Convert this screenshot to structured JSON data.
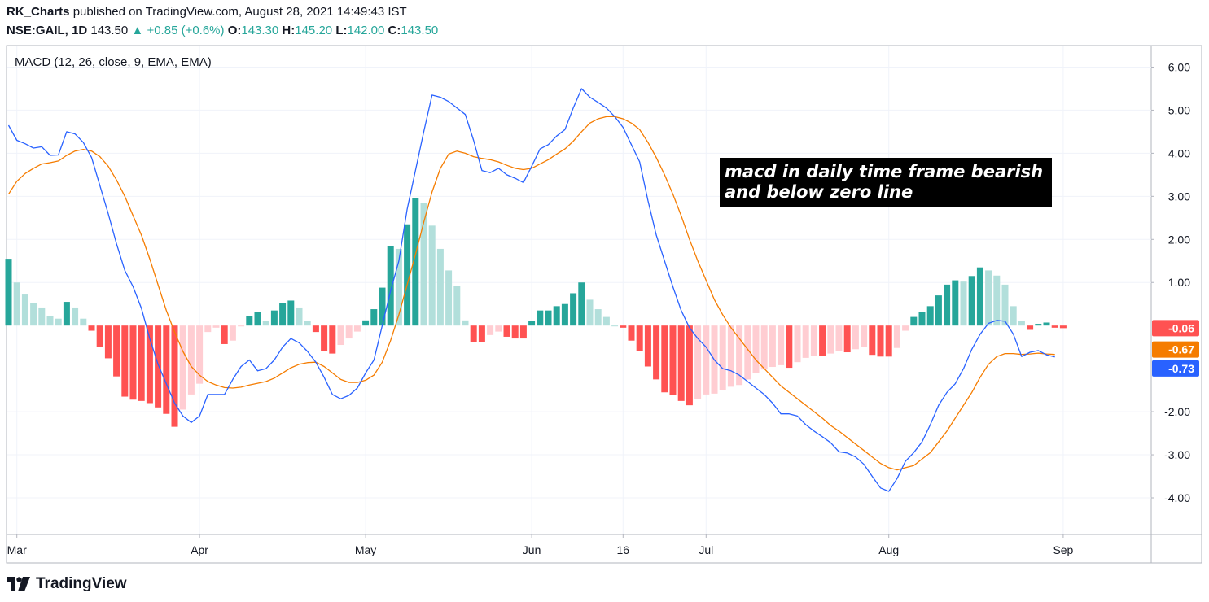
{
  "header": {
    "author": "RK_Charts",
    "published": "published on TradingView.com, August 28, 2021 14:49:43 IST",
    "symbol": "NSE:GAIL, 1D",
    "price": "143.50",
    "change": "+0.85 (+0.6%)",
    "o_label": "O:",
    "o_value": "143.30",
    "h_label": "H:",
    "h_value": "145.20",
    "l_label": "L:",
    "l_value": "142.00",
    "c_label": "C:",
    "c_value": "143.50"
  },
  "annotation": "macd in daily time frame bearish and below zero line",
  "footer": {
    "brand": "TradingView"
  },
  "colors": {
    "macd": "#2962ff",
    "signal": "#f57c00",
    "hist_pos_rising": "#26a69a",
    "hist_pos_falling": "#b2dfdb",
    "hist_neg_falling": "#ff5252",
    "hist_neg_rising": "#ffcdd2",
    "grid": "#f0f3fa",
    "border": "#b2b5be",
    "axis_text": "#131722",
    "label_hist": "#ff5252",
    "label_signal": "#f57c00",
    "label_macd": "#2962ff"
  },
  "chart_data": {
    "type": "line",
    "title": "MACD (12, 26, close, 9, EMA, EMA)",
    "x_ticks": [
      "Mar",
      "Apr",
      "May",
      "Jun",
      "16",
      "Jul",
      "Aug",
      "Sep"
    ],
    "x_tick_index": [
      1,
      23,
      43,
      63,
      74,
      84,
      106,
      127
    ],
    "y_ticks": [
      "6.00",
      "5.00",
      "4.00",
      "3.00",
      "2.00",
      "1.00",
      "-2.00",
      "-3.00",
      "-4.00"
    ],
    "y_tick_values": [
      6,
      5,
      4,
      3,
      2,
      1,
      -2,
      -3,
      -4
    ],
    "ylim": [
      -4.85,
      6.5
    ],
    "last_values": {
      "histogram": "-0.06",
      "signal": "-0.67",
      "macd": "-0.73"
    },
    "series": [
      {
        "name": "MACD",
        "values": [
          4.65,
          4.3,
          4.22,
          4.12,
          4.15,
          3.95,
          3.96,
          4.5,
          4.45,
          4.25,
          3.9,
          3.25,
          2.6,
          1.9,
          1.28,
          0.9,
          0.4,
          -0.3,
          -0.9,
          -1.35,
          -1.8,
          -2.1,
          -2.25,
          -2.1,
          -1.6,
          -1.6,
          -1.6,
          -1.25,
          -0.95,
          -0.8,
          -1.05,
          -1.0,
          -0.8,
          -0.5,
          -0.3,
          -0.4,
          -0.6,
          -0.85,
          -1.2,
          -1.6,
          -1.7,
          -1.62,
          -1.45,
          -1.1,
          -0.8,
          0.0,
          0.8,
          1.5,
          2.7,
          3.6,
          4.5,
          5.35,
          5.3,
          5.2,
          5.05,
          4.9,
          4.3,
          3.6,
          3.55,
          3.65,
          3.5,
          3.42,
          3.32,
          3.7,
          4.1,
          4.2,
          4.4,
          4.55,
          5.05,
          5.5,
          5.3,
          5.18,
          5.05,
          4.85,
          4.6,
          4.2,
          3.8,
          2.9,
          2.1,
          1.5,
          0.9,
          0.35,
          -0.05,
          -0.3,
          -0.5,
          -0.8,
          -1.0,
          -1.05,
          -1.15,
          -1.3,
          -1.45,
          -1.6,
          -1.8,
          -2.05,
          -2.05,
          -2.1,
          -2.3,
          -2.45,
          -2.58,
          -2.72,
          -2.93,
          -2.96,
          -3.05,
          -3.22,
          -3.5,
          -3.77,
          -3.85,
          -3.55,
          -3.15,
          -2.95,
          -2.7,
          -2.3,
          -1.85,
          -1.55,
          -1.35,
          -1.0,
          -0.55,
          -0.2,
          0.05,
          0.12,
          0.1,
          -0.2,
          -0.72,
          -0.62,
          -0.58,
          -0.68,
          -0.73
        ]
      },
      {
        "name": "Signal",
        "values": [
          3.05,
          3.35,
          3.53,
          3.65,
          3.75,
          3.78,
          3.82,
          3.95,
          4.05,
          4.09,
          4.05,
          3.92,
          3.7,
          3.38,
          3.0,
          2.55,
          2.1,
          1.55,
          0.95,
          0.35,
          -0.15,
          -0.6,
          -0.95,
          -1.15,
          -1.3,
          -1.38,
          -1.44,
          -1.45,
          -1.43,
          -1.38,
          -1.34,
          -1.3,
          -1.22,
          -1.1,
          -0.98,
          -0.9,
          -0.86,
          -0.85,
          -0.95,
          -1.1,
          -1.25,
          -1.32,
          -1.32,
          -1.27,
          -1.15,
          -0.85,
          -0.35,
          0.25,
          0.95,
          1.65,
          2.4,
          3.1,
          3.65,
          3.98,
          4.05,
          4.0,
          3.92,
          3.88,
          3.85,
          3.8,
          3.72,
          3.65,
          3.62,
          3.65,
          3.75,
          3.85,
          3.98,
          4.1,
          4.28,
          4.5,
          4.7,
          4.8,
          4.85,
          4.85,
          4.8,
          4.7,
          4.55,
          4.25,
          3.9,
          3.5,
          3.05,
          2.55,
          2.0,
          1.5,
          1.05,
          0.6,
          0.25,
          -0.05,
          -0.3,
          -0.55,
          -0.8,
          -1.0,
          -1.2,
          -1.4,
          -1.55,
          -1.7,
          -1.85,
          -2.0,
          -2.15,
          -2.32,
          -2.45,
          -2.6,
          -2.75,
          -2.9,
          -3.05,
          -3.2,
          -3.3,
          -3.35,
          -3.3,
          -3.25,
          -3.1,
          -2.95,
          -2.7,
          -2.45,
          -2.15,
          -1.85,
          -1.55,
          -1.2,
          -0.9,
          -0.72,
          -0.65,
          -0.65,
          -0.67,
          -0.66,
          -0.64,
          -0.66,
          -0.67
        ]
      },
      {
        "name": "Histogram",
        "values": [
          1.55,
          1.0,
          0.72,
          0.52,
          0.42,
          0.22,
          0.16,
          0.55,
          0.42,
          0.16,
          -0.12,
          -0.5,
          -0.76,
          -1.18,
          -1.65,
          -1.72,
          -1.75,
          -1.8,
          -1.9,
          -2.05,
          -2.35,
          -1.95,
          -1.6,
          -1.35,
          -0.15,
          -0.05,
          -0.43,
          -0.35,
          -0.02,
          0.22,
          0.32,
          0.1,
          0.35,
          0.52,
          0.58,
          0.42,
          0.1,
          -0.15,
          -0.6,
          -0.65,
          -0.45,
          -0.3,
          -0.14,
          0.12,
          0.38,
          0.88,
          1.85,
          1.78,
          2.35,
          2.95,
          2.85,
          2.32,
          1.78,
          1.28,
          0.92,
          0.12,
          -0.38,
          -0.38,
          -0.22,
          -0.14,
          -0.26,
          -0.3,
          -0.3,
          0.1,
          0.35,
          0.35,
          0.45,
          0.5,
          0.75,
          1.0,
          0.6,
          0.38,
          0.2,
          0.0,
          -0.05,
          -0.35,
          -0.6,
          -0.95,
          -1.25,
          -1.55,
          -1.62,
          -1.75,
          -1.85,
          -1.7,
          -1.6,
          -1.58,
          -1.5,
          -1.42,
          -1.38,
          -1.25,
          -1.1,
          -1.02,
          -0.96,
          -0.92,
          -0.98,
          -0.85,
          -0.75,
          -0.7,
          -0.7,
          -0.65,
          -0.6,
          -0.62,
          -0.55,
          -0.5,
          -0.68,
          -0.72,
          -0.72,
          -0.52,
          -0.12,
          0.2,
          0.32,
          0.45,
          0.7,
          0.95,
          1.05,
          1.02,
          1.15,
          1.35,
          1.28,
          1.16,
          0.95,
          0.45,
          0.1,
          -0.1,
          0.04,
          0.07,
          -0.05,
          -0.06
        ]
      }
    ]
  }
}
